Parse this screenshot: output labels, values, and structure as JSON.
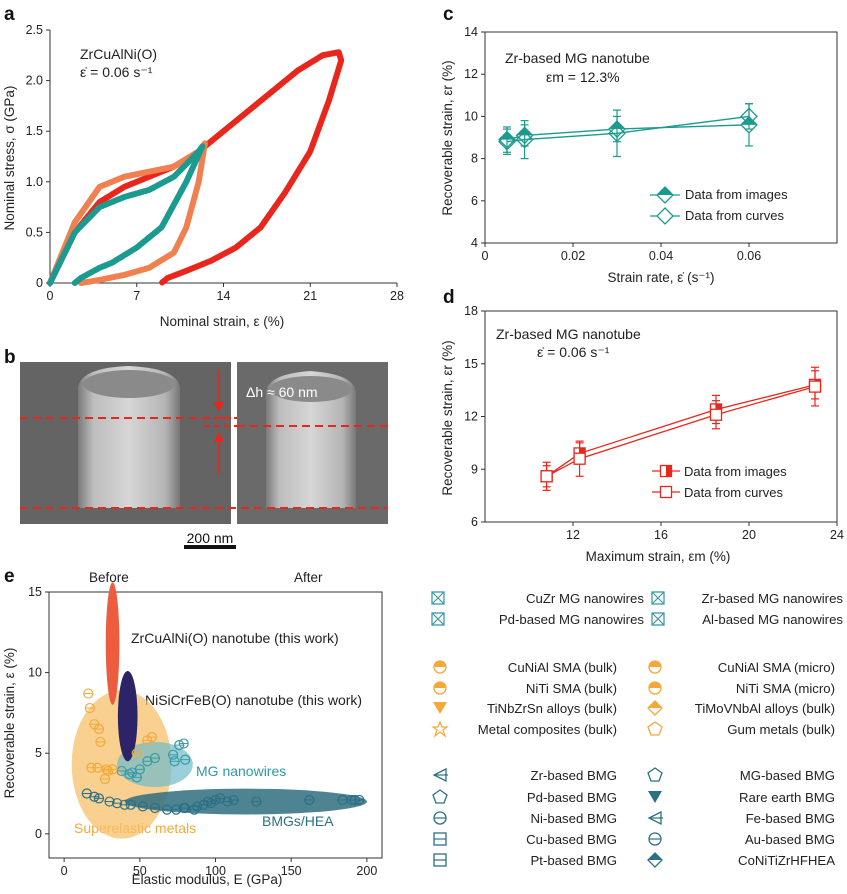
{
  "panels": {
    "a": "a",
    "b": "b",
    "c": "c",
    "d": "d",
    "e": "e"
  },
  "colors": {
    "red": "#e8261c",
    "salmon": "#f08050",
    "teal": "#1b9a90",
    "orange": "#f2a93a",
    "darkteal": "#2b7085",
    "purple": "#2d2467",
    "nanotube_orange": "#ee5c40"
  },
  "panel_a": {
    "sample": "ZrCuAlNi(O)",
    "rate": "ε̇ = 0.06 s⁻¹"
  },
  "panel_b": {
    "dh_label": "Δh ≈ 60 nm",
    "scale_bar": "200 nm"
  },
  "panel_c": {
    "annot1": "Zr-based MG nanotube",
    "annot2": "εm = 12.3%"
  },
  "panel_d": {
    "annot1": "Zr-based MG nanotube",
    "annot2": "ε̇ = 0.06 s⁻¹"
  },
  "panel_e": {
    "before": "Before",
    "after": "After",
    "labels": {
      "zr_nanotube": "ZrCuAlNi(O) nanotube (this work)",
      "ni_nanotube": "NiSiCrFeB(O) nanotube (this work)",
      "mg_nanowires": "MG nanowires",
      "bmgs": "BMGs/HEA",
      "superelastic": "Superelastic metals"
    },
    "legend": {
      "group1": [
        "CuZr MG nanowires",
        "Pd-based MG nanowires",
        "Zr-based MG nanowires",
        "Al-based MG nanowires"
      ],
      "group2": [
        "CuNiAl SMA (bulk)",
        "NiTi SMA (bulk)",
        "TiNbZrSn alloys (bulk)",
        "Metal composites (bulk)",
        "CuNiAl SMA (micro)",
        "NiTi SMA (micro)",
        "TiMoVNbAl alloys (bulk)",
        "Gum metals (bulk)"
      ],
      "group3": [
        "Zr-based BMG",
        "Pd-based BMG",
        "Ni-based BMG",
        "Cu-based BMG",
        "Pt-based BMG",
        "MG-based BMG",
        "Rare earth BMG",
        "Fe-based BMG",
        "Au-based BMG",
        "CoNiTiZrHFHEA"
      ]
    }
  },
  "chart_data": [
    {
      "id": "a",
      "type": "line",
      "xlabel": "Nominal strain, ε (%)",
      "ylabel": "Nominal stress, σ (GPa)",
      "xlim": [
        0,
        28
      ],
      "ylim": [
        0,
        2.5
      ],
      "xticks": [
        "0",
        "7",
        "14",
        "21",
        "28"
      ],
      "yticks": [
        "0",
        "0.5",
        "1.0",
        "1.5",
        "2.0",
        "2.5"
      ],
      "series": [
        {
          "color": "#e8261c",
          "x": [
            0,
            2,
            4,
            6,
            8,
            10,
            12,
            14,
            16,
            18,
            20,
            22,
            23.3,
            23.5,
            22.5,
            21,
            19,
            17,
            15,
            13,
            11,
            9.5,
            9
          ],
          "y": [
            0,
            0.5,
            0.8,
            0.95,
            1.05,
            1.15,
            1.3,
            1.5,
            1.7,
            1.9,
            2.1,
            2.25,
            2.28,
            2.2,
            1.8,
            1.3,
            0.9,
            0.55,
            0.35,
            0.22,
            0.12,
            0.05,
            0
          ]
        },
        {
          "color": "#f08050",
          "x": [
            0,
            2,
            4,
            6,
            8,
            10,
            12,
            12.5,
            12,
            11,
            10,
            8,
            6,
            4,
            3,
            2.5
          ],
          "y": [
            0,
            0.6,
            0.95,
            1.05,
            1.1,
            1.15,
            1.3,
            1.38,
            1.0,
            0.55,
            0.3,
            0.15,
            0.08,
            0.03,
            0.01,
            0
          ]
        },
        {
          "color": "#1b9a90",
          "x": [
            0,
            2,
            4,
            6,
            8,
            10,
            12,
            12.3,
            11,
            9,
            7,
            5,
            4,
            2.5,
            2
          ],
          "y": [
            0,
            0.5,
            0.75,
            0.85,
            0.92,
            1.05,
            1.3,
            1.35,
            1.0,
            0.55,
            0.35,
            0.2,
            0.15,
            0.05,
            0
          ]
        }
      ]
    },
    {
      "id": "c",
      "type": "line",
      "xlabel": "Strain rate, ε̇ (s⁻¹)",
      "ylabel": "Recoverable strain, εr (%)",
      "xlim": [
        0,
        0.08
      ],
      "ylim": [
        4,
        14
      ],
      "xticks": [
        "0",
        "0.02",
        "0.04",
        "0.06"
      ],
      "yticks": [
        "4",
        "6",
        "8",
        "10",
        "12",
        "14"
      ],
      "series": [
        {
          "name": "Data from images",
          "x": [
            0.005,
            0.009,
            0.03,
            0.06
          ],
          "y": [
            8.9,
            9.1,
            9.4,
            9.6
          ],
          "err": [
            0.6,
            0.5,
            0.6,
            1.0
          ]
        },
        {
          "name": "Data from curves",
          "x": [
            0.005,
            0.009,
            0.03,
            0.06
          ],
          "y": [
            8.8,
            8.9,
            9.2,
            10.0
          ],
          "err": [
            0.6,
            0.9,
            1.1,
            0.6
          ]
        }
      ]
    },
    {
      "id": "d",
      "type": "line",
      "xlabel": "Maximum strain, εm (%)",
      "ylabel": "Recoverable strain, εr (%)",
      "xlim": [
        8,
        24
      ],
      "ylim": [
        6,
        18
      ],
      "xticks": [
        "12",
        "16",
        "20",
        "24"
      ],
      "yticks": [
        "6",
        "9",
        "12",
        "15",
        "18"
      ],
      "series": [
        {
          "name": "Data from images",
          "x": [
            10.8,
            12.3,
            18.5,
            23.0
          ],
          "y": [
            8.6,
            9.9,
            12.4,
            13.8
          ],
          "err": [
            0.6,
            0.6,
            0.8,
            0.8
          ]
        },
        {
          "name": "Data from curves",
          "x": [
            10.8,
            12.3,
            18.5,
            23.0
          ],
          "y": [
            8.6,
            9.6,
            12.1,
            13.7
          ],
          "err": [
            0.8,
            1.0,
            0.8,
            1.1
          ]
        }
      ]
    },
    {
      "id": "e",
      "type": "scatter",
      "xlabel": "Elastic modulus, E (GPa)",
      "ylabel": "Recoverable strain, ε (%)",
      "xlim": [
        -10,
        210
      ],
      "ylim": [
        -1.5,
        15
      ],
      "xticks": [
        "0",
        "50",
        "100",
        "150",
        "200"
      ],
      "yticks": [
        "0",
        "5",
        "10",
        "15"
      ],
      "regions": [
        {
          "name": "ZrCuAlNi(O) nanotube",
          "x": 32,
          "y": 11.8,
          "rx": 4.5,
          "ry": 3.8
        },
        {
          "name": "NiSiCrFeB(O) nanotube",
          "x": 42,
          "y": 7.3,
          "rx": 6.5,
          "ry": 2.8
        },
        {
          "name": "MG nanowires",
          "x": 60,
          "y": 4.3,
          "rx": 25,
          "ry": 1.4
        },
        {
          "name": "BMGs/HEA",
          "x": 120,
          "y": 2.0,
          "rx": 80,
          "ry": 0.8
        },
        {
          "name": "Superelastic metals",
          "x": 38,
          "y": 4.3,
          "rx": 33,
          "ry": 4.6
        }
      ],
      "points": [
        [
          76,
          5.5
        ],
        [
          79,
          5.6
        ],
        [
          72,
          4.9
        ],
        [
          73,
          4.5
        ],
        [
          80,
          4.6
        ],
        [
          60,
          4.7
        ],
        [
          55,
          4.5
        ],
        [
          50,
          4.0
        ],
        [
          45,
          3.8
        ],
        [
          38,
          3.9
        ],
        [
          43,
          3.7
        ],
        [
          48,
          3.5
        ],
        [
          16,
          8.7
        ],
        [
          17,
          7.8
        ],
        [
          20,
          6.8
        ],
        [
          23,
          6.5
        ],
        [
          24,
          5.7
        ],
        [
          28,
          4.0
        ],
        [
          18,
          4.1
        ],
        [
          22,
          4.1
        ],
        [
          27,
          3.4
        ],
        [
          29,
          3.9
        ],
        [
          32,
          4.0
        ],
        [
          48,
          5.0
        ],
        [
          55,
          5.8
        ],
        [
          58,
          6.0
        ],
        [
          15,
          2.5
        ],
        [
          20,
          2.3
        ],
        [
          23,
          2.2
        ],
        [
          30,
          2.0
        ],
        [
          35,
          1.9
        ],
        [
          40,
          1.8
        ],
        [
          44,
          1.8
        ],
        [
          52,
          1.7
        ],
        [
          60,
          1.6
        ],
        [
          68,
          1.5
        ],
        [
          74,
          1.5
        ],
        [
          80,
          1.6
        ],
        [
          88,
          1.7
        ],
        [
          92,
          1.8
        ],
        [
          95,
          2.0
        ],
        [
          97,
          1.9
        ],
        [
          100,
          2.1
        ],
        [
          103,
          2.2
        ],
        [
          108,
          2.0
        ],
        [
          112,
          2.1
        ],
        [
          127,
          2.0
        ],
        [
          162,
          2.1
        ],
        [
          184,
          2.1
        ],
        [
          190,
          2.1
        ],
        [
          192,
          2.1
        ],
        [
          195,
          2.1
        ],
        [
          86,
          1.5
        ],
        [
          79,
          1.6
        ]
      ]
    }
  ]
}
